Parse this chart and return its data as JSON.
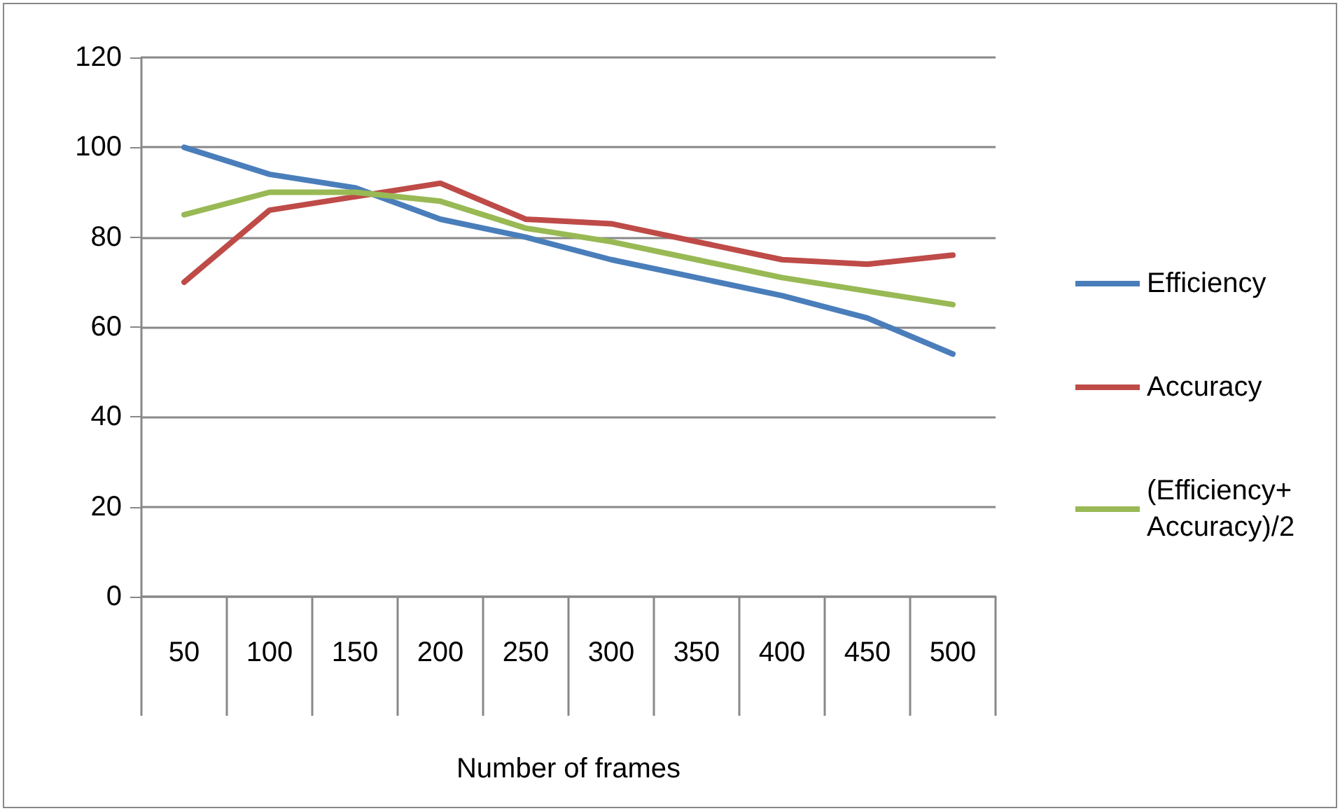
{
  "chart_data": {
    "type": "line",
    "xlabel": "Number of frames",
    "categories": [
      "50",
      "100",
      "150",
      "200",
      "250",
      "300",
      "350",
      "400",
      "450",
      "500"
    ],
    "series": [
      {
        "name": "Efficiency",
        "color": "#4a7ebb",
        "values": [
          100,
          94,
          91,
          84,
          80,
          75,
          71,
          67,
          62,
          54
        ]
      },
      {
        "name": "Accuracy",
        "color": "#be4b48",
        "values": [
          70,
          86,
          89,
          92,
          84,
          83,
          79,
          75,
          74,
          76
        ]
      },
      {
        "name": "(Efficiency+ Accuracy)/2",
        "color": "#98b954",
        "values": [
          85,
          90,
          90,
          88,
          82,
          79,
          75,
          71,
          68,
          65
        ]
      }
    ],
    "ylim": [
      0,
      120
    ],
    "yticks": [
      0,
      20,
      40,
      60,
      80,
      100,
      120
    ],
    "grid": "y",
    "legend": "right",
    "marker": "none",
    "line_style": "solid"
  }
}
